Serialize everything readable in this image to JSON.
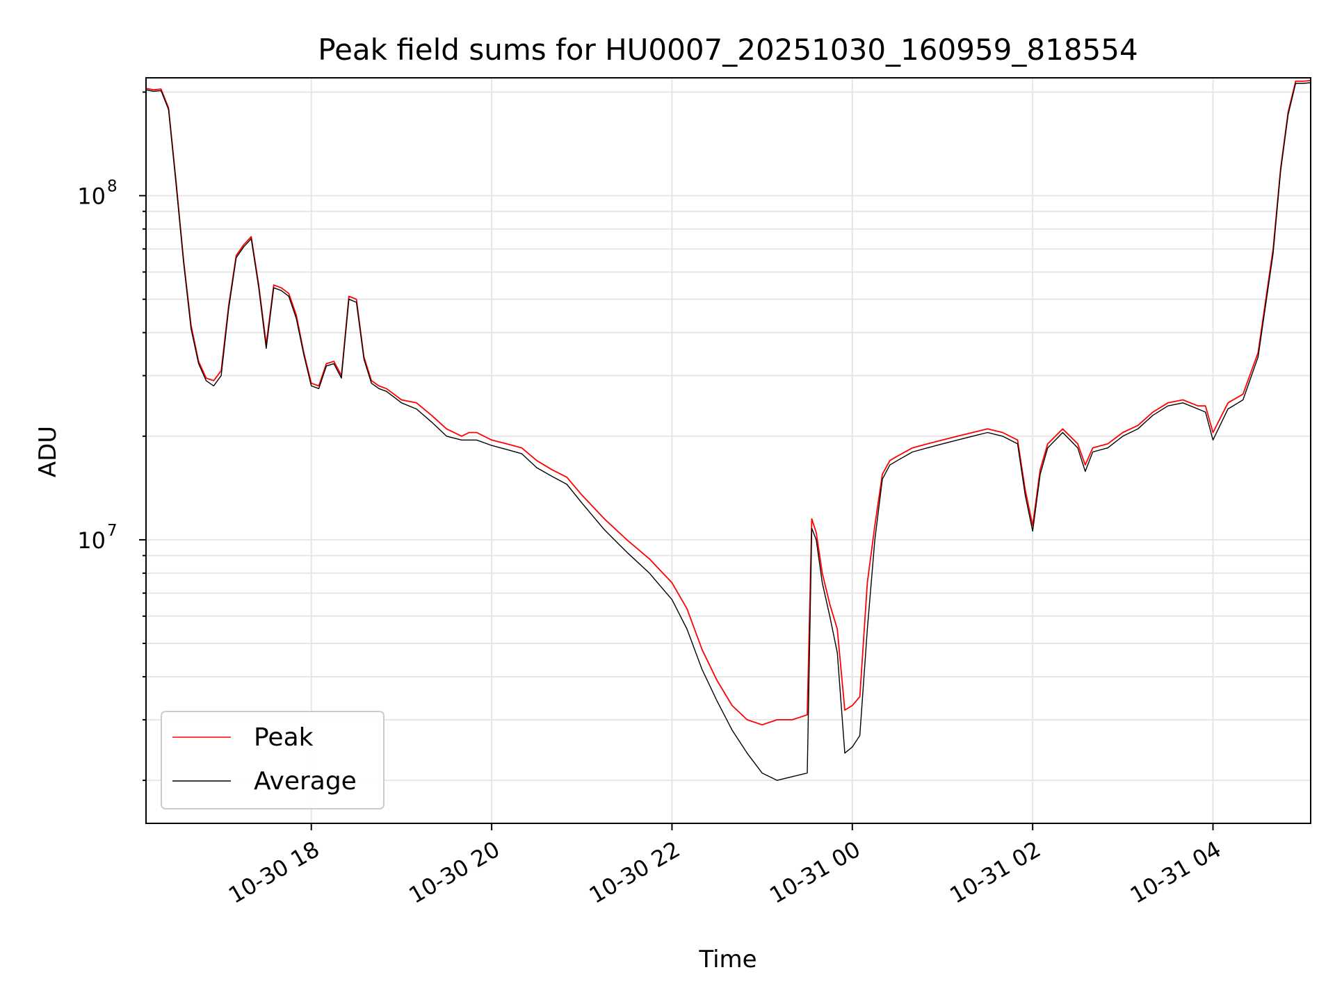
{
  "chart_data": {
    "type": "line",
    "title": "Peak field sums for HU0007_20251030_160959_818554",
    "xlabel": "Time",
    "ylabel": "ADU",
    "yscale": "log",
    "grid": true,
    "legend_position": "lower-left",
    "xlim": [
      "2025-10-30 16:10",
      "2025-10-31 05:05"
    ],
    "ylim": [
      1500000,
      220000000
    ],
    "x_ticks": [
      {
        "value": "2025-10-30 18:00",
        "label": "10-30 18"
      },
      {
        "value": "2025-10-30 20:00",
        "label": "10-30 20"
      },
      {
        "value": "2025-10-30 22:00",
        "label": "10-30 22"
      },
      {
        "value": "2025-10-31 00:00",
        "label": "10-31 00"
      },
      {
        "value": "2025-10-31 02:00",
        "label": "10-31 02"
      },
      {
        "value": "2025-10-31 04:00",
        "label": "10-31 04"
      }
    ],
    "y_ticks": [
      {
        "value": 10000000,
        "base": "10",
        "exp": "7"
      },
      {
        "value": 100000000,
        "base": "10",
        "exp": "8"
      }
    ],
    "series": [
      {
        "name": "Peak",
        "color": "#ff0000",
        "x": [
          "2025-10-30 16:10",
          "2025-10-30 16:15",
          "2025-10-30 16:20",
          "2025-10-30 16:25",
          "2025-10-30 16:30",
          "2025-10-30 16:35",
          "2025-10-30 16:40",
          "2025-10-30 16:45",
          "2025-10-30 16:50",
          "2025-10-30 16:55",
          "2025-10-30 17:00",
          "2025-10-30 17:05",
          "2025-10-30 17:10",
          "2025-10-30 17:15",
          "2025-10-30 17:20",
          "2025-10-30 17:25",
          "2025-10-30 17:30",
          "2025-10-30 17:35",
          "2025-10-30 17:40",
          "2025-10-30 17:45",
          "2025-10-30 17:50",
          "2025-10-30 17:55",
          "2025-10-30 18:00",
          "2025-10-30 18:05",
          "2025-10-30 18:10",
          "2025-10-30 18:15",
          "2025-10-30 18:20",
          "2025-10-30 18:25",
          "2025-10-30 18:30",
          "2025-10-30 18:35",
          "2025-10-30 18:40",
          "2025-10-30 18:45",
          "2025-10-30 18:50",
          "2025-10-30 18:55",
          "2025-10-30 19:00",
          "2025-10-30 19:10",
          "2025-10-30 19:20",
          "2025-10-30 19:30",
          "2025-10-30 19:40",
          "2025-10-30 19:45",
          "2025-10-30 19:50",
          "2025-10-30 20:00",
          "2025-10-30 20:10",
          "2025-10-30 20:20",
          "2025-10-30 20:30",
          "2025-10-30 20:40",
          "2025-10-30 20:50",
          "2025-10-30 21:00",
          "2025-10-30 21:15",
          "2025-10-30 21:30",
          "2025-10-30 21:45",
          "2025-10-30 22:00",
          "2025-10-30 22:10",
          "2025-10-30 22:20",
          "2025-10-30 22:30",
          "2025-10-30 22:40",
          "2025-10-30 22:50",
          "2025-10-30 23:00",
          "2025-10-30 23:10",
          "2025-10-30 23:20",
          "2025-10-30 23:30",
          "2025-10-30 23:33",
          "2025-10-30 23:36",
          "2025-10-30 23:40",
          "2025-10-30 23:45",
          "2025-10-30 23:50",
          "2025-10-30 23:55",
          "2025-10-31 00:00",
          "2025-10-31 00:05",
          "2025-10-31 00:10",
          "2025-10-31 00:15",
          "2025-10-31 00:20",
          "2025-10-31 00:25",
          "2025-10-31 00:30",
          "2025-10-31 00:40",
          "2025-10-31 00:50",
          "2025-10-31 01:00",
          "2025-10-31 01:10",
          "2025-10-31 01:20",
          "2025-10-31 01:30",
          "2025-10-31 01:40",
          "2025-10-31 01:50",
          "2025-10-31 01:55",
          "2025-10-31 02:00",
          "2025-10-31 02:05",
          "2025-10-31 02:10",
          "2025-10-31 02:20",
          "2025-10-31 02:30",
          "2025-10-31 02:35",
          "2025-10-31 02:40",
          "2025-10-31 02:50",
          "2025-10-31 03:00",
          "2025-10-31 03:10",
          "2025-10-31 03:20",
          "2025-10-31 03:30",
          "2025-10-31 03:40",
          "2025-10-31 03:50",
          "2025-10-31 03:55",
          "2025-10-31 04:00",
          "2025-10-31 04:10",
          "2025-10-31 04:20",
          "2025-10-31 04:30",
          "2025-10-31 04:40",
          "2025-10-31 04:45",
          "2025-10-31 04:50",
          "2025-10-31 04:55",
          "2025-10-31 05:00",
          "2025-10-31 05:05"
        ],
        "y": [
          205000000,
          203000000,
          204000000,
          180000000,
          110000000,
          65000000,
          42000000,
          33000000,
          29500000,
          29000000,
          31000000,
          48000000,
          67000000,
          72000000,
          76000000,
          55000000,
          37000000,
          55000000,
          54000000,
          52000000,
          45000000,
          35000000,
          28500000,
          28000000,
          32500000,
          33000000,
          30000000,
          51000000,
          50000000,
          34000000,
          29000000,
          28000000,
          27500000,
          26500000,
          25500000,
          25000000,
          23000000,
          21000000,
          20000000,
          20500000,
          20500000,
          19500000,
          19000000,
          18500000,
          17000000,
          16000000,
          15200000,
          13500000,
          11500000,
          10000000,
          8800000,
          7500000,
          6300000,
          4800000,
          3900000,
          3300000,
          3000000,
          2900000,
          3000000,
          3000000,
          3100000,
          11500000,
          10500000,
          8000000,
          6500000,
          5500000,
          3200000,
          3300000,
          3500000,
          7500000,
          11000000,
          15500000,
          17000000,
          17500000,
          18500000,
          19000000,
          19500000,
          20000000,
          20500000,
          21000000,
          20500000,
          19500000,
          14000000,
          11000000,
          16000000,
          19000000,
          21000000,
          19000000,
          16500000,
          18500000,
          19000000,
          20500000,
          21500000,
          23500000,
          25000000,
          25500000,
          24500000,
          24500000,
          20500000,
          25000000,
          26500000,
          35000000,
          70000000,
          120000000,
          175000000,
          215000000,
          215000000,
          216000000
        ]
      },
      {
        "name": "Average",
        "color": "#000000",
        "x": [
          "2025-10-30 16:10",
          "2025-10-30 16:15",
          "2025-10-30 16:20",
          "2025-10-30 16:25",
          "2025-10-30 16:30",
          "2025-10-30 16:35",
          "2025-10-30 16:40",
          "2025-10-30 16:45",
          "2025-10-30 16:50",
          "2025-10-30 16:55",
          "2025-10-30 17:00",
          "2025-10-30 17:05",
          "2025-10-30 17:10",
          "2025-10-30 17:15",
          "2025-10-30 17:20",
          "2025-10-30 17:25",
          "2025-10-30 17:30",
          "2025-10-30 17:35",
          "2025-10-30 17:40",
          "2025-10-30 17:45",
          "2025-10-30 17:50",
          "2025-10-30 17:55",
          "2025-10-30 18:00",
          "2025-10-30 18:05",
          "2025-10-30 18:10",
          "2025-10-30 18:15",
          "2025-10-30 18:20",
          "2025-10-30 18:25",
          "2025-10-30 18:30",
          "2025-10-30 18:35",
          "2025-10-30 18:40",
          "2025-10-30 18:45",
          "2025-10-30 18:50",
          "2025-10-30 18:55",
          "2025-10-30 19:00",
          "2025-10-30 19:10",
          "2025-10-30 19:20",
          "2025-10-30 19:30",
          "2025-10-30 19:40",
          "2025-10-30 19:45",
          "2025-10-30 19:50",
          "2025-10-30 20:00",
          "2025-10-30 20:10",
          "2025-10-30 20:20",
          "2025-10-30 20:30",
          "2025-10-30 20:40",
          "2025-10-30 20:50",
          "2025-10-30 21:00",
          "2025-10-30 21:15",
          "2025-10-30 21:30",
          "2025-10-30 21:45",
          "2025-10-30 22:00",
          "2025-10-30 22:10",
          "2025-10-30 22:20",
          "2025-10-30 22:30",
          "2025-10-30 22:40",
          "2025-10-30 22:50",
          "2025-10-30 23:00",
          "2025-10-30 23:10",
          "2025-10-30 23:20",
          "2025-10-30 23:30",
          "2025-10-30 23:33",
          "2025-10-30 23:36",
          "2025-10-30 23:40",
          "2025-10-30 23:45",
          "2025-10-30 23:50",
          "2025-10-30 23:55",
          "2025-10-31 00:00",
          "2025-10-31 00:05",
          "2025-10-31 00:10",
          "2025-10-31 00:15",
          "2025-10-31 00:20",
          "2025-10-31 00:25",
          "2025-10-31 00:30",
          "2025-10-31 00:40",
          "2025-10-31 00:50",
          "2025-10-31 01:00",
          "2025-10-31 01:10",
          "2025-10-31 01:20",
          "2025-10-31 01:30",
          "2025-10-31 01:40",
          "2025-10-31 01:50",
          "2025-10-31 01:55",
          "2025-10-31 02:00",
          "2025-10-31 02:05",
          "2025-10-31 02:10",
          "2025-10-31 02:20",
          "2025-10-31 02:30",
          "2025-10-31 02:35",
          "2025-10-31 02:40",
          "2025-10-31 02:50",
          "2025-10-31 03:00",
          "2025-10-31 03:10",
          "2025-10-31 03:20",
          "2025-10-31 03:30",
          "2025-10-31 03:40",
          "2025-10-31 03:50",
          "2025-10-31 03:55",
          "2025-10-31 04:00",
          "2025-10-31 04:10",
          "2025-10-31 04:20",
          "2025-10-31 04:30",
          "2025-10-31 04:40",
          "2025-10-31 04:45",
          "2025-10-31 04:50",
          "2025-10-31 04:55",
          "2025-10-31 05:00",
          "2025-10-31 05:05"
        ],
        "y": [
          203000000,
          201000000,
          202000000,
          178000000,
          108000000,
          64000000,
          41000000,
          32500000,
          29000000,
          28000000,
          30000000,
          47000000,
          66000000,
          71000000,
          75000000,
          54000000,
          36000000,
          54000000,
          53000000,
          51000000,
          44000000,
          34500000,
          28000000,
          27500000,
          32000000,
          32500000,
          29500000,
          50000000,
          49000000,
          33500000,
          28500000,
          27500000,
          27000000,
          26000000,
          25000000,
          24000000,
          22000000,
          20000000,
          19500000,
          19500000,
          19500000,
          18800000,
          18300000,
          17800000,
          16200000,
          15300000,
          14500000,
          12800000,
          10700000,
          9200000,
          8000000,
          6700000,
          5500000,
          4200000,
          3400000,
          2800000,
          2400000,
          2100000,
          2000000,
          2050000,
          2100000,
          10800000,
          10000000,
          7500000,
          6000000,
          4700000,
          2400000,
          2500000,
          2700000,
          5500000,
          10000000,
          15000000,
          16500000,
          17000000,
          18000000,
          18500000,
          19000000,
          19500000,
          20000000,
          20500000,
          20000000,
          19000000,
          13500000,
          10600000,
          15500000,
          18500000,
          20500000,
          18500000,
          15800000,
          18000000,
          18500000,
          20000000,
          21000000,
          23000000,
          24500000,
          25000000,
          24000000,
          23500000,
          19500000,
          24000000,
          25500000,
          34000000,
          68000000,
          118000000,
          172000000,
          212000000,
          212000000,
          213000000
        ]
      }
    ]
  }
}
